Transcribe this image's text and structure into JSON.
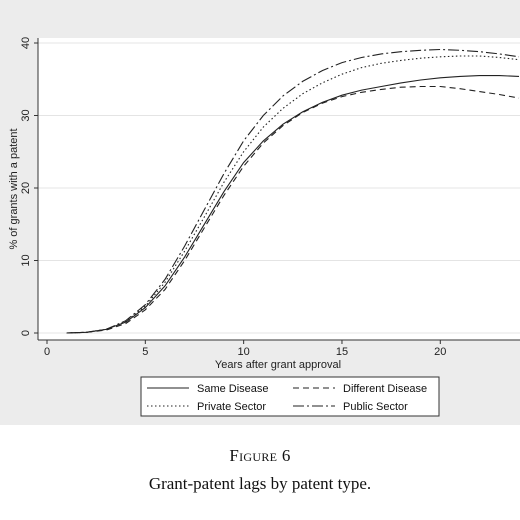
{
  "chart_data": {
    "type": "line",
    "xlabel": "Years after grant approval",
    "ylabel": "% of grants with a patent",
    "xlim": [
      0,
      24
    ],
    "ylim": [
      0,
      40
    ],
    "xticks": [
      0,
      5,
      10,
      15,
      20
    ],
    "yticks": [
      0,
      10,
      20,
      30,
      40
    ],
    "grid": "horizontal",
    "legend_position": "bottom",
    "x": [
      1,
      2,
      3,
      4,
      5,
      6,
      7,
      8,
      9,
      10,
      11,
      12,
      13,
      14,
      15,
      16,
      17,
      18,
      19,
      20,
      21,
      22,
      23,
      24
    ],
    "series": [
      {
        "name": "Same Disease",
        "style": "solid",
        "values": [
          0,
          0.1,
          0.5,
          1.5,
          3.5,
          6.5,
          10.5,
          15,
          19.5,
          23.5,
          26.5,
          28.8,
          30.5,
          31.8,
          32.8,
          33.5,
          34.0,
          34.5,
          34.9,
          35.2,
          35.4,
          35.5,
          35.5,
          35.4
        ]
      },
      {
        "name": "Different Disease",
        "style": "dashed",
        "values": [
          0,
          0.1,
          0.4,
          1.3,
          3.2,
          6.0,
          10.0,
          14.5,
          19.0,
          23.0,
          26.2,
          28.6,
          30.4,
          31.7,
          32.6,
          33.2,
          33.6,
          33.9,
          34.0,
          34.0,
          33.7,
          33.3,
          32.9,
          32.4
        ]
      },
      {
        "name": "Private Sector",
        "style": "dotted",
        "values": [
          0,
          0.1,
          0.5,
          1.6,
          3.7,
          7.0,
          11.3,
          16.0,
          20.8,
          25.0,
          28.4,
          31.0,
          33.0,
          34.5,
          35.7,
          36.6,
          37.2,
          37.6,
          37.9,
          38.1,
          38.2,
          38.2,
          38.0,
          37.7
        ]
      },
      {
        "name": "Public Sector",
        "style": "longdash",
        "values": [
          0,
          0.1,
          0.5,
          1.7,
          3.9,
          7.4,
          12.0,
          17.0,
          22.0,
          26.5,
          30.0,
          32.7,
          34.7,
          36.2,
          37.3,
          38.0,
          38.5,
          38.8,
          39.0,
          39.1,
          39.0,
          38.8,
          38.5,
          38.1
        ]
      }
    ]
  },
  "caption": {
    "label": "Figure 6",
    "text": "Grant-patent lags by patent type."
  }
}
